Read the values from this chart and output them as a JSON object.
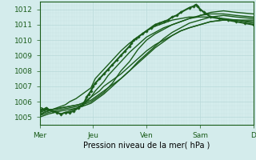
{
  "xlabel": "Pression niveau de la mer( hPa )",
  "bg_color": "#d4ecec",
  "grid_major_color": "#b8d8d8",
  "grid_minor_color": "#c8e4e4",
  "line_color": "#1a5c1a",
  "xlim": [
    0,
    5.0
  ],
  "ylim": [
    1004.5,
    1012.5
  ],
  "yticks": [
    1005,
    1006,
    1007,
    1008,
    1009,
    1010,
    1011,
    1012
  ],
  "xtick_labels": [
    "Mer",
    "Jeu",
    "Ven",
    "Sam",
    "D"
  ],
  "xtick_positions": [
    0.0,
    1.25,
    2.5,
    3.75,
    5.0
  ],
  "lines": [
    {
      "x": [
        0.0,
        0.05,
        0.1,
        0.2,
        0.3,
        0.4,
        0.5,
        0.6,
        0.7,
        0.85,
        1.0,
        1.1,
        1.2,
        1.25,
        1.3,
        1.4,
        1.5,
        1.7,
        1.9,
        2.1,
        2.3,
        2.5,
        2.7,
        2.9,
        3.1,
        3.3,
        3.5,
        3.75,
        4.0,
        4.3,
        4.6,
        4.8,
        5.0
      ],
      "y": [
        1005.1,
        1005.2,
        1005.3,
        1005.4,
        1005.5,
        1005.6,
        1005.7,
        1005.8,
        1006.0,
        1006.2,
        1006.5,
        1006.7,
        1006.9,
        1007.2,
        1007.5,
        1007.8,
        1008.1,
        1008.7,
        1009.3,
        1009.8,
        1010.2,
        1010.6,
        1010.9,
        1011.1,
        1011.3,
        1011.4,
        1011.5,
        1011.5,
        1011.5,
        1011.4,
        1011.3,
        1011.2,
        1011.1
      ],
      "lw": 1.0,
      "marker": null
    },
    {
      "x": [
        0.0,
        0.1,
        0.2,
        0.3,
        0.5,
        0.7,
        0.9,
        1.0,
        1.1,
        1.2,
        1.3,
        1.4,
        1.5,
        1.7,
        1.9,
        2.1,
        2.3,
        2.5,
        2.7,
        2.9,
        3.1,
        3.3,
        3.5,
        3.75,
        4.0,
        4.3,
        4.6,
        5.0
      ],
      "y": [
        1005.2,
        1005.3,
        1005.4,
        1005.5,
        1005.6,
        1005.7,
        1005.8,
        1005.9,
        1006.1,
        1006.3,
        1006.5,
        1006.7,
        1007.0,
        1007.4,
        1007.8,
        1008.3,
        1008.8,
        1009.3,
        1009.7,
        1010.0,
        1010.3,
        1010.6,
        1010.8,
        1011.0,
        1011.2,
        1011.3,
        1011.3,
        1011.2
      ],
      "lw": 1.0,
      "marker": null
    },
    {
      "x": [
        0.0,
        0.1,
        0.2,
        0.35,
        0.5,
        0.7,
        0.9,
        1.0,
        1.1,
        1.2,
        1.25,
        1.3,
        1.4,
        1.5,
        1.7,
        1.9,
        2.1,
        2.3,
        2.5,
        2.7,
        2.9,
        3.1,
        3.3,
        3.5,
        3.75,
        4.0,
        4.3,
        4.6,
        5.0
      ],
      "y": [
        1005.3,
        1005.4,
        1005.5,
        1005.5,
        1005.6,
        1005.7,
        1005.8,
        1005.9,
        1006.0,
        1006.1,
        1006.2,
        1006.3,
        1006.5,
        1006.7,
        1007.1,
        1007.5,
        1008.0,
        1008.5,
        1009.0,
        1009.5,
        1009.9,
        1010.3,
        1010.6,
        1010.8,
        1011.0,
        1011.2,
        1011.3,
        1011.3,
        1011.3
      ],
      "lw": 1.0,
      "marker": null
    },
    {
      "x": [
        0.0,
        0.1,
        0.2,
        0.35,
        0.5,
        0.7,
        0.9,
        1.0,
        1.1,
        1.2,
        1.25,
        1.3,
        1.4,
        1.5,
        1.7,
        1.9,
        2.1,
        2.3,
        2.5,
        2.7,
        2.9,
        3.1,
        3.3,
        3.5,
        3.75,
        4.0,
        4.3,
        4.6,
        5.0
      ],
      "y": [
        1005.0,
        1005.1,
        1005.2,
        1005.3,
        1005.4,
        1005.5,
        1005.6,
        1005.7,
        1005.8,
        1005.9,
        1006.0,
        1006.1,
        1006.3,
        1006.5,
        1007.0,
        1007.5,
        1008.0,
        1008.6,
        1009.1,
        1009.6,
        1010.1,
        1010.5,
        1010.8,
        1011.1,
        1011.3,
        1011.5,
        1011.6,
        1011.5,
        1011.4
      ],
      "lw": 1.0,
      "marker": null
    },
    {
      "x": [
        0.0,
        0.1,
        0.2,
        0.35,
        0.5,
        0.7,
        0.9,
        1.0,
        1.1,
        1.2,
        1.25,
        1.3,
        1.4,
        1.5,
        1.6,
        1.7,
        1.8,
        1.9,
        2.0,
        2.1,
        2.2,
        2.3,
        2.4,
        2.5,
        2.7,
        2.9,
        3.1,
        3.3,
        3.5,
        3.75,
        4.0,
        4.3,
        4.6,
        5.0
      ],
      "y": [
        1005.1,
        1005.2,
        1005.3,
        1005.4,
        1005.5,
        1005.6,
        1005.7,
        1005.8,
        1005.9,
        1006.0,
        1006.1,
        1006.2,
        1006.4,
        1006.6,
        1006.9,
        1007.2,
        1007.6,
        1008.0,
        1008.3,
        1008.6,
        1009.0,
        1009.4,
        1009.7,
        1010.0,
        1010.4,
        1010.7,
        1011.0,
        1011.2,
        1011.4,
        1011.6,
        1011.8,
        1011.9,
        1011.8,
        1011.7
      ],
      "lw": 1.0,
      "marker": null
    },
    {
      "x": [
        0.0,
        0.05,
        0.1,
        0.15,
        0.2,
        0.3,
        0.4,
        0.5,
        0.6,
        0.7,
        0.8,
        0.9,
        1.0,
        1.05,
        1.1,
        1.15,
        1.2,
        1.25,
        1.3,
        1.4,
        1.5,
        1.6,
        1.7,
        1.8,
        1.9,
        2.0,
        2.1,
        2.15,
        2.2,
        2.25,
        2.3,
        2.4,
        2.5,
        2.6,
        2.7,
        2.8,
        2.9,
        3.0,
        3.1,
        3.2,
        3.3,
        3.5,
        3.6,
        3.65,
        3.7,
        3.75,
        3.85,
        4.0,
        4.2,
        4.4,
        4.6,
        4.8,
        5.0
      ],
      "y": [
        1005.4,
        1005.5,
        1005.5,
        1005.6,
        1005.5,
        1005.4,
        1005.3,
        1005.2,
        1005.3,
        1005.3,
        1005.4,
        1005.6,
        1005.8,
        1006.0,
        1006.3,
        1006.5,
        1006.7,
        1007.0,
        1007.2,
        1007.5,
        1007.8,
        1008.1,
        1008.4,
        1008.7,
        1009.0,
        1009.3,
        1009.6,
        1009.8,
        1010.0,
        1010.1,
        1010.2,
        1010.4,
        1010.6,
        1010.8,
        1011.0,
        1011.1,
        1011.2,
        1011.3,
        1011.5,
        1011.6,
        1011.8,
        1012.1,
        1012.2,
        1012.3,
        1012.2,
        1012.0,
        1011.8,
        1011.5,
        1011.4,
        1011.3,
        1011.2,
        1011.1,
        1011.0
      ],
      "lw": 1.5,
      "marker": "D"
    },
    {
      "x": [
        0.0,
        0.05,
        0.1,
        0.2,
        0.3,
        0.4,
        0.5,
        0.6,
        0.7,
        0.8,
        0.9,
        1.0,
        1.1,
        1.2,
        1.25,
        1.3,
        1.4,
        1.5,
        1.6,
        1.7,
        1.9,
        2.1,
        2.3,
        2.5,
        2.7,
        2.9,
        3.1,
        3.3,
        3.5,
        3.7,
        3.75,
        4.0,
        4.3,
        4.6,
        5.0
      ],
      "y": [
        1005.6,
        1005.6,
        1005.5,
        1005.5,
        1005.4,
        1005.3,
        1005.2,
        1005.3,
        1005.4,
        1005.5,
        1005.6,
        1005.8,
        1006.0,
        1006.3,
        1006.5,
        1006.7,
        1007.0,
        1007.3,
        1007.7,
        1008.0,
        1008.6,
        1009.2,
        1009.7,
        1010.2,
        1010.5,
        1010.8,
        1011.0,
        1011.2,
        1011.4,
        1011.5,
        1011.6,
        1011.7,
        1011.7,
        1011.6,
        1011.5
      ],
      "lw": 1.0,
      "marker": null
    }
  ]
}
